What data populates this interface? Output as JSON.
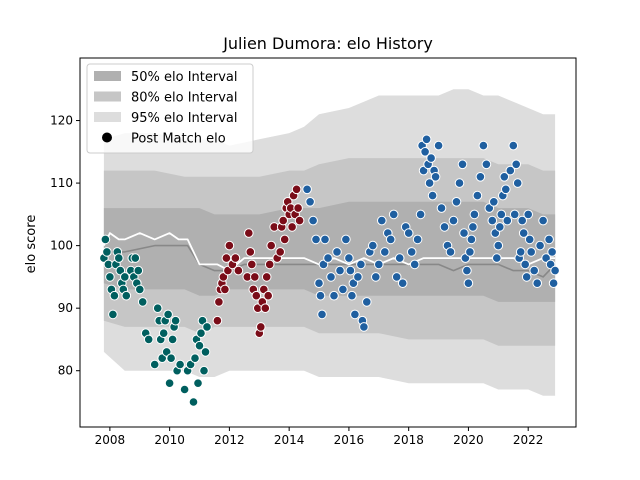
{
  "chart_data": {
    "type": "scatter",
    "title": "Julien Dumora: elo History",
    "xlabel": "",
    "ylabel": "elo score",
    "xlim": [
      2007.0,
      2023.6
    ],
    "ylim": [
      71,
      130
    ],
    "xticks": [
      2008,
      2010,
      2012,
      2014,
      2016,
      2018,
      2020,
      2022
    ],
    "yticks": [
      80,
      90,
      100,
      110,
      120
    ],
    "grid": false,
    "legend": {
      "placement": "top-left",
      "entries": [
        {
          "label": "50% elo Interval",
          "color": "#b0b0b0"
        },
        {
          "label": "80% elo Interval",
          "color": "#c6c6c6"
        },
        {
          "label": "95% elo Interval",
          "color": "#dddddd"
        },
        {
          "label": "Post Match elo",
          "color": "#000000"
        }
      ]
    },
    "colors": {
      "era_teal": "#005f5f",
      "era_darkred": "#7a0c18",
      "era_blue": "#1f5fa0",
      "mean_line": "#ffffff",
      "median_line": "#888888"
    },
    "bands": {
      "x": [
        2007.8,
        2008.5,
        2009.5,
        2010.5,
        2011.0,
        2011.5,
        2012.0,
        2013.0,
        2014.0,
        2014.5,
        2015.0,
        2016.0,
        2016.5,
        2017.0,
        2018.0,
        2019.0,
        2019.5,
        2020.0,
        2020.5,
        2021.0,
        2021.5,
        2022.0,
        2022.5,
        2022.9
      ],
      "p95_low": [
        83,
        80,
        80,
        80,
        79,
        79,
        80,
        80,
        80,
        80,
        79,
        79,
        79,
        79,
        78,
        78,
        78,
        78,
        78,
        77,
        77,
        77,
        76,
        76
      ],
      "p95_high": [
        117,
        118,
        118,
        117,
        117,
        117,
        116,
        117,
        118,
        119,
        121,
        122,
        123,
        124,
        124,
        124,
        125,
        125,
        124,
        124,
        123,
        122,
        121,
        121
      ],
      "p80_low": [
        88,
        87,
        87,
        87,
        86,
        87,
        87,
        87,
        87,
        87,
        86,
        86,
        86,
        86,
        85,
        85,
        85,
        85,
        85,
        84,
        84,
        84,
        84,
        84
      ],
      "p80_high": [
        112,
        112,
        112,
        111,
        111,
        111,
        111,
        111,
        112,
        112,
        113,
        114,
        114,
        114,
        114,
        114,
        114,
        114,
        114,
        113,
        113,
        113,
        112,
        112
      ],
      "p50_low": [
        94,
        93,
        93,
        93,
        92,
        92,
        93,
        93,
        93,
        93,
        92,
        92,
        92,
        92,
        92,
        92,
        92,
        92,
        92,
        91,
        91,
        91,
        91,
        91
      ],
      "p50_high": [
        106,
        106,
        106,
        106,
        106,
        105,
        105,
        105,
        106,
        106,
        106,
        107,
        107,
        107,
        107,
        107,
        107,
        107,
        107,
        106,
        106,
        106,
        105,
        105
      ]
    },
    "mean_line": {
      "x": [
        2007.8,
        2008.0,
        2008.3,
        2008.5,
        2009.0,
        2009.5,
        2010.0,
        2010.3,
        2010.6,
        2011.0,
        2011.3,
        2011.6,
        2012.0,
        2012.5,
        2013.0,
        2013.5,
        2014.0,
        2014.5,
        2015.0,
        2015.5,
        2016.0,
        2016.5,
        2017.0,
        2017.5,
        2018.0,
        2018.5,
        2019.0,
        2019.5,
        2020.0,
        2020.5,
        2021.0,
        2021.5,
        2022.0,
        2022.5,
        2022.9
      ],
      "y": [
        100,
        102,
        101,
        101,
        102,
        101,
        102,
        101,
        101,
        97,
        97,
        97,
        96,
        98,
        98,
        98,
        98,
        98,
        97,
        98,
        97,
        98,
        97,
        98,
        97,
        98,
        98,
        98,
        98,
        98,
        98,
        98,
        97,
        98,
        98
      ]
    },
    "median_line": {
      "x": [
        2007.8,
        2008.5,
        2009.5,
        2010.3,
        2010.6,
        2011.0,
        2011.5,
        2012.0,
        2012.5,
        2013.0,
        2013.5,
        2014.0,
        2015.0,
        2016.0,
        2016.5,
        2017.0,
        2017.5,
        2018.0,
        2018.5,
        2019.0,
        2019.5,
        2020.0,
        2020.5,
        2021.0,
        2021.5,
        2022.0,
        2022.5,
        2022.9
      ],
      "y": [
        99,
        99,
        100,
        100,
        100,
        97,
        96,
        96,
        97,
        97,
        97,
        97,
        97,
        97,
        97,
        97,
        97,
        97,
        97,
        97,
        96,
        97,
        97,
        97,
        96,
        96,
        95,
        97
      ]
    },
    "series": [
      {
        "color": "#005f5f",
        "x": [
          2007.8,
          2007.85,
          2007.9,
          2007.95,
          2008.0,
          2008.05,
          2008.1,
          2008.15,
          2008.2,
          2008.25,
          2008.3,
          2008.35,
          2008.4,
          2008.45,
          2008.5,
          2008.55,
          2008.7,
          2008.75,
          2008.8,
          2008.85,
          2008.9,
          2008.95,
          2009.0,
          2009.1,
          2009.2,
          2009.3,
          2009.5,
          2009.6,
          2009.65,
          2009.7,
          2009.75,
          2009.8,
          2009.85,
          2009.9,
          2009.95,
          2010.0,
          2010.05,
          2010.1,
          2010.15,
          2010.2,
          2010.25,
          2010.35,
          2010.5,
          2010.6,
          2010.7,
          2010.8,
          2010.85,
          2010.9,
          2010.95,
          2011.0,
          2011.05,
          2011.1,
          2011.15,
          2011.2,
          2011.25
        ],
        "y": [
          98,
          101,
          99,
          97,
          95,
          93,
          89,
          92,
          97,
          99,
          98,
          96,
          94,
          93,
          95,
          92,
          96,
          98,
          95,
          98,
          94,
          96,
          93,
          91,
          86,
          85,
          81,
          90,
          88,
          85,
          82,
          86,
          88,
          83,
          89,
          78,
          82,
          85,
          87,
          88,
          80,
          81,
          77,
          80,
          81,
          75,
          82,
          85,
          78,
          84,
          86,
          88,
          80,
          83,
          87
        ]
      },
      {
        "color": "#7a0c18",
        "x": [
          2011.6,
          2011.65,
          2011.7,
          2011.75,
          2011.8,
          2011.85,
          2011.9,
          2011.95,
          2012.0,
          2012.1,
          2012.2,
          2012.3,
          2012.6,
          2012.65,
          2012.7,
          2012.75,
          2012.8,
          2012.85,
          2012.9,
          2012.95,
          2013.0,
          2013.05,
          2013.1,
          2013.15,
          2013.2,
          2013.25,
          2013.3,
          2013.35,
          2013.4,
          2013.5,
          2013.6,
          2013.7,
          2013.75,
          2013.8,
          2013.85,
          2013.9,
          2013.95,
          2014.0,
          2014.05,
          2014.1,
          2014.15,
          2014.2,
          2014.25,
          2014.3,
          2014.35
        ],
        "y": [
          88,
          91,
          93,
          94,
          95,
          93,
          98,
          96,
          100,
          97,
          98,
          96,
          95,
          102,
          99,
          97,
          93,
          95,
          92,
          90,
          86,
          87,
          91,
          93,
          90,
          95,
          92,
          97,
          100,
          103,
          98,
          99,
          103,
          104,
          101,
          106,
          107,
          105,
          106,
          103,
          108,
          105,
          109,
          106,
          104
        ]
      },
      {
        "color": "#1f5fa0",
        "x": [
          2014.6,
          2014.7,
          2014.8,
          2014.9,
          2015.0,
          2015.05,
          2015.1,
          2015.15,
          2015.2,
          2015.3,
          2015.4,
          2015.5,
          2015.6,
          2015.7,
          2015.8,
          2015.9,
          2016.0,
          2016.05,
          2016.1,
          2016.15,
          2016.2,
          2016.3,
          2016.4,
          2016.45,
          2016.5,
          2016.6,
          2016.7,
          2016.8,
          2016.9,
          2017.0,
          2017.1,
          2017.2,
          2017.3,
          2017.4,
          2017.5,
          2017.6,
          2017.7,
          2017.8,
          2017.9,
          2018.0,
          2018.1,
          2018.2,
          2018.3,
          2018.4,
          2018.45,
          2018.5,
          2018.55,
          2018.6,
          2018.65,
          2018.7,
          2018.75,
          2018.8,
          2018.85,
          2018.9,
          2019.0,
          2019.1,
          2019.2,
          2019.3,
          2019.4,
          2019.5,
          2019.6,
          2019.7,
          2019.8,
          2019.85,
          2019.9,
          2019.95,
          2020.0,
          2020.05,
          2020.1,
          2020.15,
          2020.2,
          2020.3,
          2020.4,
          2020.5,
          2020.6,
          2020.7,
          2020.8,
          2020.85,
          2020.9,
          2020.95,
          2021.0,
          2021.05,
          2021.1,
          2021.15,
          2021.2,
          2021.25,
          2021.3,
          2021.4,
          2021.5,
          2021.55,
          2021.6,
          2021.65,
          2021.7,
          2021.75,
          2021.8,
          2021.85,
          2021.9,
          2021.95,
          2022.0,
          2022.05,
          2022.1,
          2022.2,
          2022.3,
          2022.4,
          2022.5,
          2022.6,
          2022.7,
          2022.75,
          2022.8,
          2022.85,
          2022.9
        ],
        "y": [
          109,
          107,
          104,
          101,
          94,
          92,
          89,
          97,
          101,
          98,
          95,
          92,
          99,
          96,
          93,
          101,
          98,
          96,
          92,
          94,
          89,
          95,
          97,
          88,
          87,
          91,
          99,
          100,
          95,
          97,
          104,
          99,
          102,
          101,
          105,
          95,
          98,
          94,
          103,
          102,
          99,
          97,
          101,
          105,
          116,
          112,
          115,
          117,
          113,
          110,
          114,
          108,
          112,
          111,
          116,
          106,
          103,
          100,
          99,
          104,
          107,
          110,
          113,
          102,
          98,
          96,
          94,
          99,
          101,
          103,
          105,
          108,
          111,
          116,
          113,
          106,
          104,
          107,
          102,
          98,
          100,
          103,
          105,
          108,
          111,
          109,
          104,
          112,
          116,
          105,
          113,
          110,
          98,
          99,
          104,
          102,
          97,
          95,
          105,
          101,
          99,
          96,
          94,
          100,
          104,
          98,
          101,
          97,
          99,
          94,
          96
        ]
      }
    ]
  }
}
